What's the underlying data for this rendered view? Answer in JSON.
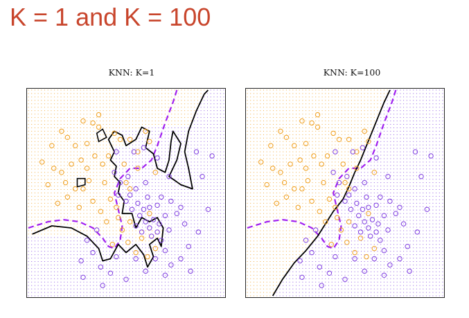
{
  "slide": {
    "title": "K = 1 and K = 100"
  },
  "colors": {
    "class_orange": "#f0a020",
    "class_purple": "#8040e0",
    "bayes_boundary": "#a020f0",
    "knn_boundary": "#000000",
    "title_red": "#c8452c"
  },
  "chart_data": [
    {
      "type": "scatter",
      "title": "KNN: K=1",
      "xlim": [
        0,
        1
      ],
      "ylim": [
        0,
        1
      ],
      "grid": false,
      "series": [],
      "points_orange": [
        [
          0.28,
          0.85
        ],
        [
          0.33,
          0.84
        ],
        [
          0.36,
          0.88
        ],
        [
          0.44,
          0.79
        ],
        [
          0.47,
          0.76
        ],
        [
          0.52,
          0.76
        ],
        [
          0.56,
          0.7
        ],
        [
          0.17,
          0.8
        ],
        [
          0.2,
          0.77
        ],
        [
          0.24,
          0.73
        ],
        [
          0.3,
          0.74
        ],
        [
          0.34,
          0.68
        ],
        [
          0.27,
          0.66
        ],
        [
          0.22,
          0.64
        ],
        [
          0.3,
          0.62
        ],
        [
          0.38,
          0.64
        ],
        [
          0.17,
          0.6
        ],
        [
          0.13,
          0.62
        ],
        [
          0.1,
          0.54
        ],
        [
          0.19,
          0.55
        ],
        [
          0.24,
          0.52
        ],
        [
          0.28,
          0.52
        ],
        [
          0.33,
          0.46
        ],
        [
          0.2,
          0.48
        ],
        [
          0.15,
          0.45
        ],
        [
          0.39,
          0.55
        ],
        [
          0.42,
          0.47
        ],
        [
          0.37,
          0.41
        ],
        [
          0.45,
          0.43
        ],
        [
          0.4,
          0.36
        ],
        [
          0.46,
          0.38
        ],
        [
          0.48,
          0.32
        ],
        [
          0.52,
          0.36
        ],
        [
          0.6,
          0.8
        ],
        [
          0.62,
          0.75
        ],
        [
          0.56,
          0.62
        ],
        [
          0.49,
          0.64
        ],
        [
          0.51,
          0.26
        ],
        [
          0.65,
          0.6
        ],
        [
          0.43,
          0.25
        ],
        [
          0.55,
          0.21
        ],
        [
          0.61,
          0.19
        ],
        [
          0.07,
          0.65
        ],
        [
          0.36,
          0.82
        ],
        [
          0.41,
          0.68
        ],
        [
          0.31,
          0.56
        ],
        [
          0.12,
          0.73
        ],
        [
          0.26,
          0.43
        ],
        [
          0.65,
          0.23
        ],
        [
          0.58,
          0.28
        ],
        [
          0.62,
          0.4
        ],
        [
          0.5,
          0.55
        ],
        [
          0.52,
          0.52
        ]
      ],
      "points_purple": [
        [
          0.47,
          0.55
        ],
        [
          0.51,
          0.58
        ],
        [
          0.52,
          0.49
        ],
        [
          0.55,
          0.52
        ],
        [
          0.56,
          0.45
        ],
        [
          0.59,
          0.42
        ],
        [
          0.61,
          0.48
        ],
        [
          0.53,
          0.42
        ],
        [
          0.57,
          0.39
        ],
        [
          0.6,
          0.36
        ],
        [
          0.62,
          0.33
        ],
        [
          0.63,
          0.29
        ],
        [
          0.66,
          0.31
        ],
        [
          0.68,
          0.27
        ],
        [
          0.67,
          0.35
        ],
        [
          0.7,
          0.39
        ],
        [
          0.72,
          0.32
        ],
        [
          0.55,
          0.34
        ],
        [
          0.58,
          0.31
        ],
        [
          0.64,
          0.37
        ],
        [
          0.62,
          0.43
        ],
        [
          0.66,
          0.44
        ],
        [
          0.68,
          0.48
        ],
        [
          0.73,
          0.46
        ],
        [
          0.76,
          0.4
        ],
        [
          0.78,
          0.43
        ],
        [
          0.8,
          0.35
        ],
        [
          0.7,
          0.22
        ],
        [
          0.65,
          0.18
        ],
        [
          0.73,
          0.15
        ],
        [
          0.78,
          0.18
        ],
        [
          0.82,
          0.24
        ],
        [
          0.87,
          0.31
        ],
        [
          0.92,
          0.42
        ],
        [
          0.89,
          0.58
        ],
        [
          0.94,
          0.68
        ],
        [
          0.86,
          0.7
        ],
        [
          0.72,
          0.58
        ],
        [
          0.59,
          0.72
        ],
        [
          0.66,
          0.67
        ],
        [
          0.54,
          0.7
        ],
        [
          0.45,
          0.7
        ],
        [
          0.3,
          0.27
        ],
        [
          0.33,
          0.21
        ],
        [
          0.27,
          0.17
        ],
        [
          0.37,
          0.14
        ],
        [
          0.42,
          0.11
        ],
        [
          0.28,
          0.09
        ],
        [
          0.5,
          0.08
        ],
        [
          0.38,
          0.05
        ],
        [
          0.6,
          0.12
        ],
        [
          0.55,
          0.18
        ],
        [
          0.45,
          0.19
        ],
        [
          0.35,
          0.32
        ],
        [
          0.7,
          0.1
        ],
        [
          0.83,
          0.12
        ],
        [
          0.5,
          0.46
        ],
        [
          0.46,
          0.49
        ],
        [
          0.44,
          0.6
        ],
        [
          0.6,
          0.55
        ]
      ],
      "bayes_boundary": [
        [
          0.0,
          0.33
        ],
        [
          0.1,
          0.36
        ],
        [
          0.18,
          0.37
        ],
        [
          0.26,
          0.36
        ],
        [
          0.33,
          0.33
        ],
        [
          0.38,
          0.28
        ],
        [
          0.41,
          0.24
        ],
        [
          0.44,
          0.23
        ],
        [
          0.47,
          0.27
        ],
        [
          0.48,
          0.34
        ],
        [
          0.46,
          0.42
        ],
        [
          0.44,
          0.5
        ],
        [
          0.47,
          0.57
        ],
        [
          0.52,
          0.62
        ],
        [
          0.58,
          0.62
        ],
        [
          0.63,
          0.66
        ],
        [
          0.66,
          0.73
        ],
        [
          0.7,
          0.84
        ],
        [
          0.74,
          0.94
        ],
        [
          0.76,
          1.0
        ]
      ],
      "knn_boundary": [
        [
          0.02,
          0.3
        ],
        [
          0.12,
          0.34
        ],
        [
          0.22,
          0.33
        ],
        [
          0.3,
          0.29
        ],
        [
          0.36,
          0.23
        ],
        [
          0.38,
          0.17
        ],
        [
          0.42,
          0.18
        ],
        [
          0.46,
          0.25
        ],
        [
          0.5,
          0.21
        ],
        [
          0.55,
          0.25
        ],
        [
          0.59,
          0.2
        ],
        [
          0.61,
          0.14
        ],
        [
          0.64,
          0.19
        ],
        [
          0.62,
          0.25
        ],
        [
          0.66,
          0.28
        ],
        [
          0.68,
          0.24
        ],
        [
          0.69,
          0.33
        ],
        [
          0.66,
          0.38
        ],
        [
          0.62,
          0.36
        ],
        [
          0.58,
          0.38
        ],
        [
          0.55,
          0.33
        ],
        [
          0.53,
          0.4
        ],
        [
          0.48,
          0.4
        ],
        [
          0.49,
          0.46
        ],
        [
          0.46,
          0.5
        ],
        [
          0.47,
          0.55
        ],
        [
          0.44,
          0.58
        ],
        [
          0.45,
          0.63
        ],
        [
          0.42,
          0.66
        ],
        [
          0.44,
          0.7
        ],
        [
          0.41,
          0.76
        ],
        [
          0.44,
          0.8
        ],
        [
          0.48,
          0.78
        ],
        [
          0.5,
          0.73
        ],
        [
          0.55,
          0.76
        ],
        [
          0.58,
          0.82
        ],
        [
          0.62,
          0.8
        ],
        [
          0.6,
          0.72
        ],
        [
          0.64,
          0.69
        ],
        [
          0.66,
          0.62
        ],
        [
          0.7,
          0.6
        ],
        [
          0.72,
          0.66
        ],
        [
          0.73,
          0.75
        ],
        [
          0.74,
          0.8
        ],
        [
          0.78,
          0.74
        ],
        [
          0.76,
          0.66
        ],
        [
          0.72,
          0.58
        ],
        [
          0.78,
          0.54
        ],
        [
          0.84,
          0.52
        ],
        [
          0.82,
          0.62
        ],
        [
          0.8,
          0.7
        ],
        [
          0.82,
          0.8
        ],
        [
          0.86,
          0.9
        ],
        [
          0.9,
          0.98
        ],
        [
          0.92,
          1.0
        ]
      ],
      "knn_islands": [
        [
          [
            0.25,
            0.53
          ],
          [
            0.29,
            0.54
          ],
          [
            0.29,
            0.57
          ],
          [
            0.25,
            0.57
          ],
          [
            0.25,
            0.53
          ]
        ],
        [
          [
            0.36,
            0.75
          ],
          [
            0.4,
            0.77
          ],
          [
            0.38,
            0.81
          ],
          [
            0.35,
            0.79
          ],
          [
            0.36,
            0.75
          ]
        ]
      ]
    },
    {
      "type": "scatter",
      "title": "KNN: K=100",
      "xlim": [
        0,
        1
      ],
      "ylim": [
        0,
        1
      ],
      "grid": false,
      "series": [],
      "points_orange": [
        [
          0.28,
          0.85
        ],
        [
          0.33,
          0.84
        ],
        [
          0.36,
          0.88
        ],
        [
          0.44,
          0.79
        ],
        [
          0.47,
          0.76
        ],
        [
          0.52,
          0.76
        ],
        [
          0.56,
          0.7
        ],
        [
          0.17,
          0.8
        ],
        [
          0.2,
          0.77
        ],
        [
          0.24,
          0.73
        ],
        [
          0.3,
          0.74
        ],
        [
          0.34,
          0.68
        ],
        [
          0.27,
          0.66
        ],
        [
          0.22,
          0.64
        ],
        [
          0.3,
          0.62
        ],
        [
          0.38,
          0.64
        ],
        [
          0.17,
          0.6
        ],
        [
          0.13,
          0.62
        ],
        [
          0.1,
          0.54
        ],
        [
          0.19,
          0.55
        ],
        [
          0.24,
          0.52
        ],
        [
          0.28,
          0.52
        ],
        [
          0.33,
          0.46
        ],
        [
          0.2,
          0.48
        ],
        [
          0.15,
          0.45
        ],
        [
          0.39,
          0.55
        ],
        [
          0.42,
          0.47
        ],
        [
          0.37,
          0.41
        ],
        [
          0.45,
          0.43
        ],
        [
          0.4,
          0.36
        ],
        [
          0.46,
          0.38
        ],
        [
          0.48,
          0.32
        ],
        [
          0.52,
          0.36
        ],
        [
          0.6,
          0.8
        ],
        [
          0.62,
          0.75
        ],
        [
          0.56,
          0.62
        ],
        [
          0.49,
          0.64
        ],
        [
          0.51,
          0.26
        ],
        [
          0.65,
          0.6
        ],
        [
          0.43,
          0.25
        ],
        [
          0.55,
          0.21
        ],
        [
          0.61,
          0.19
        ],
        [
          0.07,
          0.65
        ],
        [
          0.36,
          0.82
        ],
        [
          0.41,
          0.68
        ],
        [
          0.31,
          0.56
        ],
        [
          0.12,
          0.73
        ],
        [
          0.26,
          0.43
        ],
        [
          0.65,
          0.23
        ],
        [
          0.58,
          0.28
        ],
        [
          0.62,
          0.4
        ],
        [
          0.5,
          0.55
        ],
        [
          0.52,
          0.52
        ]
      ],
      "points_purple": [
        [
          0.47,
          0.55
        ],
        [
          0.51,
          0.58
        ],
        [
          0.52,
          0.49
        ],
        [
          0.55,
          0.52
        ],
        [
          0.56,
          0.45
        ],
        [
          0.59,
          0.42
        ],
        [
          0.61,
          0.48
        ],
        [
          0.53,
          0.42
        ],
        [
          0.57,
          0.39
        ],
        [
          0.6,
          0.36
        ],
        [
          0.62,
          0.33
        ],
        [
          0.63,
          0.29
        ],
        [
          0.66,
          0.31
        ],
        [
          0.68,
          0.27
        ],
        [
          0.67,
          0.35
        ],
        [
          0.7,
          0.39
        ],
        [
          0.72,
          0.32
        ],
        [
          0.55,
          0.34
        ],
        [
          0.58,
          0.31
        ],
        [
          0.64,
          0.37
        ],
        [
          0.62,
          0.43
        ],
        [
          0.66,
          0.44
        ],
        [
          0.68,
          0.48
        ],
        [
          0.73,
          0.46
        ],
        [
          0.76,
          0.4
        ],
        [
          0.78,
          0.43
        ],
        [
          0.8,
          0.35
        ],
        [
          0.7,
          0.22
        ],
        [
          0.65,
          0.18
        ],
        [
          0.73,
          0.15
        ],
        [
          0.78,
          0.18
        ],
        [
          0.82,
          0.24
        ],
        [
          0.87,
          0.31
        ],
        [
          0.92,
          0.42
        ],
        [
          0.89,
          0.58
        ],
        [
          0.94,
          0.68
        ],
        [
          0.86,
          0.7
        ],
        [
          0.72,
          0.58
        ],
        [
          0.59,
          0.72
        ],
        [
          0.66,
          0.67
        ],
        [
          0.54,
          0.7
        ],
        [
          0.45,
          0.7
        ],
        [
          0.3,
          0.27
        ],
        [
          0.33,
          0.21
        ],
        [
          0.27,
          0.17
        ],
        [
          0.37,
          0.14
        ],
        [
          0.42,
          0.11
        ],
        [
          0.28,
          0.09
        ],
        [
          0.5,
          0.08
        ],
        [
          0.38,
          0.05
        ],
        [
          0.6,
          0.12
        ],
        [
          0.55,
          0.18
        ],
        [
          0.45,
          0.19
        ],
        [
          0.35,
          0.32
        ],
        [
          0.7,
          0.1
        ],
        [
          0.83,
          0.12
        ],
        [
          0.5,
          0.46
        ],
        [
          0.46,
          0.49
        ],
        [
          0.44,
          0.6
        ],
        [
          0.6,
          0.55
        ]
      ],
      "bayes_boundary": [
        [
          0.0,
          0.33
        ],
        [
          0.1,
          0.36
        ],
        [
          0.18,
          0.37
        ],
        [
          0.26,
          0.36
        ],
        [
          0.33,
          0.33
        ],
        [
          0.38,
          0.28
        ],
        [
          0.41,
          0.24
        ],
        [
          0.44,
          0.23
        ],
        [
          0.47,
          0.27
        ],
        [
          0.48,
          0.34
        ],
        [
          0.46,
          0.42
        ],
        [
          0.44,
          0.5
        ],
        [
          0.47,
          0.57
        ],
        [
          0.52,
          0.62
        ],
        [
          0.58,
          0.62
        ],
        [
          0.63,
          0.66
        ],
        [
          0.66,
          0.73
        ],
        [
          0.7,
          0.84
        ],
        [
          0.74,
          0.94
        ],
        [
          0.76,
          1.0
        ]
      ],
      "knn_boundary": [
        [
          0.13,
          0.0
        ],
        [
          0.18,
          0.08
        ],
        [
          0.24,
          0.16
        ],
        [
          0.3,
          0.22
        ],
        [
          0.36,
          0.29
        ],
        [
          0.4,
          0.35
        ],
        [
          0.44,
          0.41
        ],
        [
          0.49,
          0.47
        ],
        [
          0.52,
          0.53
        ],
        [
          0.55,
          0.6
        ],
        [
          0.58,
          0.66
        ],
        [
          0.61,
          0.73
        ],
        [
          0.64,
          0.8
        ],
        [
          0.67,
          0.87
        ],
        [
          0.7,
          0.94
        ],
        [
          0.73,
          1.0
        ]
      ],
      "knn_islands": []
    }
  ]
}
